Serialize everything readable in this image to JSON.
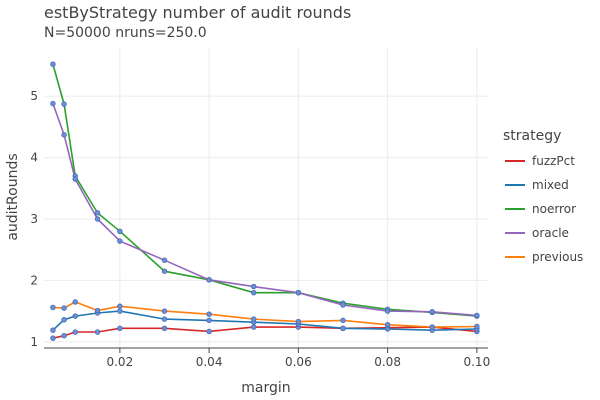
{
  "chart_data": {
    "type": "line",
    "title": "estByStrategy number of audit rounds",
    "subtitle": "N=50000 nruns=250.0",
    "xlabel": "margin",
    "ylabel": "auditRounds",
    "xlim": [
      0.003,
      0.1025
    ],
    "ylim": [
      0.9,
      5.8
    ],
    "xticks": [
      0.02,
      0.04,
      0.06,
      0.08,
      0.1
    ],
    "xtick_labels": [
      "0.02",
      "0.04",
      "0.06",
      "0.08",
      "0.10"
    ],
    "yticks": [
      1,
      2,
      3,
      4,
      5
    ],
    "ytick_labels": [
      "1",
      "2",
      "3",
      "4",
      "5"
    ],
    "grid": true,
    "legend": {
      "title": "strategy",
      "position": "right"
    },
    "x": [
      0.005,
      0.0075,
      0.01,
      0.015,
      0.02,
      0.03,
      0.04,
      0.05,
      0.06,
      0.07,
      0.08,
      0.09,
      0.1
    ],
    "series": [
      {
        "name": "fuzzPct",
        "color": "#d62728",
        "values": [
          1.06,
          1.1,
          1.16,
          1.16,
          1.22,
          1.22,
          1.17,
          1.24,
          1.24,
          1.22,
          1.23,
          1.24,
          1.17
        ]
      },
      {
        "name": "mixed",
        "color": "#1f77b4",
        "values": [
          1.19,
          1.36,
          1.42,
          1.47,
          1.5,
          1.37,
          1.35,
          1.32,
          1.29,
          1.22,
          1.21,
          1.19,
          1.21
        ]
      },
      {
        "name": "noerror",
        "color": "#2ca02c",
        "values": [
          5.52,
          4.87,
          3.7,
          3.1,
          2.8,
          2.15,
          2.01,
          1.8,
          1.8,
          1.63,
          1.53,
          1.48,
          1.42
        ]
      },
      {
        "name": "oracle",
        "color": "#9467bd",
        "values": [
          4.88,
          4.37,
          3.65,
          3.0,
          2.64,
          2.33,
          2.01,
          1.9,
          1.8,
          1.6,
          1.5,
          1.49,
          1.43
        ]
      },
      {
        "name": "previous",
        "color": "#ff7f0e",
        "values": [
          1.56,
          1.55,
          1.65,
          1.51,
          1.58,
          1.5,
          1.45,
          1.37,
          1.33,
          1.35,
          1.28,
          1.24,
          1.25
        ]
      }
    ],
    "marker_color": "#6a8fd8"
  }
}
